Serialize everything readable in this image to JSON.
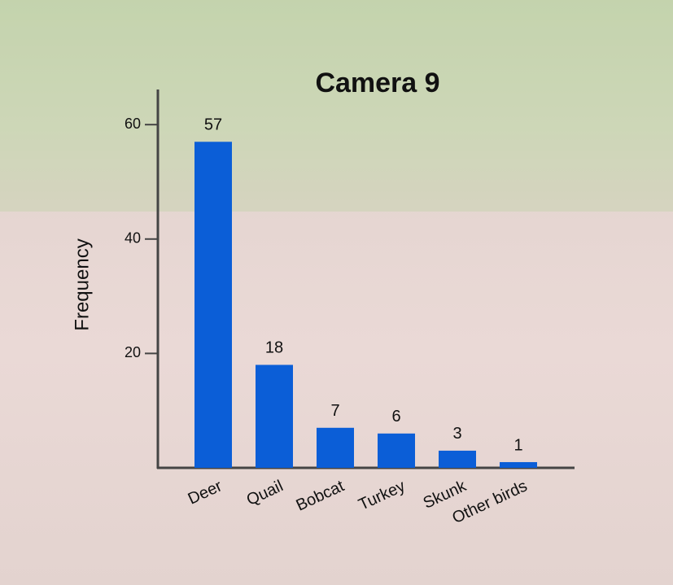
{
  "chart_data": {
    "type": "bar",
    "title": "Camera 9",
    "y_label": "Frequency",
    "categories": [
      "Deer",
      "Quail",
      "Bobcat",
      "Turkey",
      "Skunk",
      "Other birds"
    ],
    "values": [
      57,
      18,
      7,
      6,
      3,
      1
    ],
    "color": "#0b5ed7",
    "ylim": [
      0,
      66
    ],
    "yticks": [
      20,
      40,
      60
    ],
    "grid": false
  }
}
